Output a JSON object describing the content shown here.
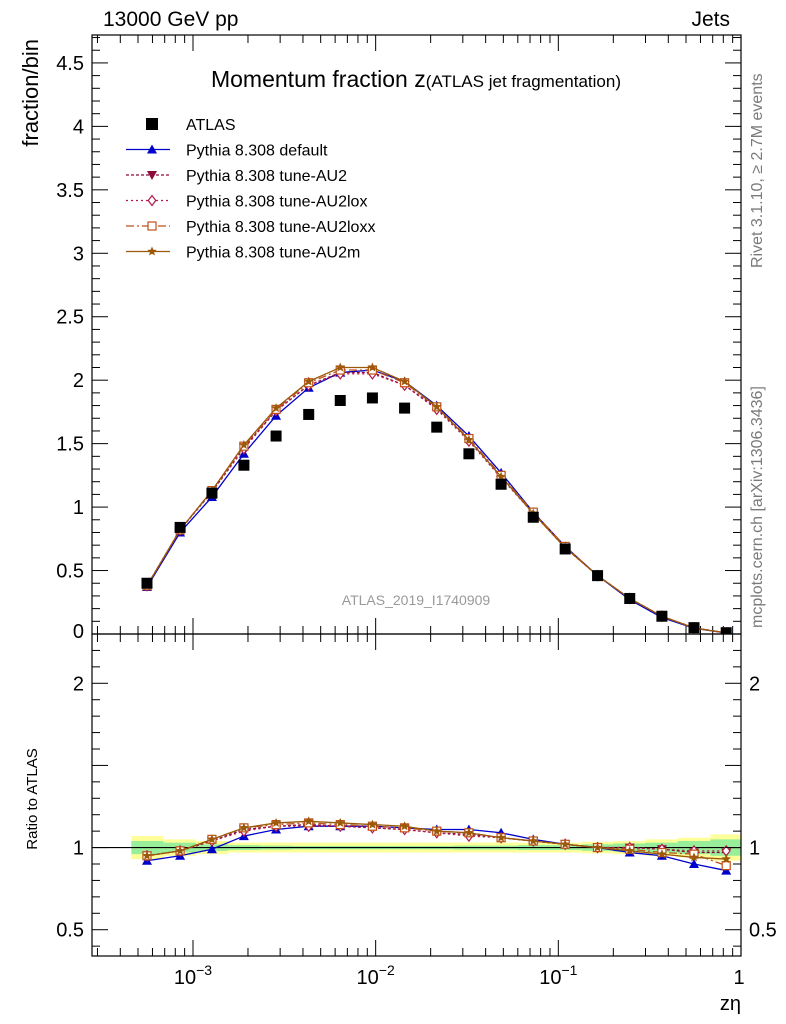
{
  "header": {
    "left": "13000 GeV pp",
    "right": "Jets"
  },
  "side_labels": {
    "rivet": "Rivet 3.1.10, ≥ 2.7M events",
    "mcplots": "mcplots.cern.ch [arXiv:1306.3436]"
  },
  "chart_data": [
    {
      "type": "line",
      "title": "Momentum fraction z",
      "subtitle": "(ATLAS jet fragmentation)",
      "ylabel": "fraction/bin",
      "xlabel": "",
      "xscale": "log",
      "xlim": [
        0.00028,
        1.0
      ],
      "ylim": [
        0,
        4.72
      ],
      "yticks": [
        0.5,
        1,
        1.5,
        2,
        2.5,
        3,
        3.5,
        4,
        4.5
      ],
      "ytick_labels": [
        "0.5",
        "1",
        "1.5",
        "2",
        "2.5",
        "3",
        "3.5",
        "4",
        "4.5"
      ],
      "bottom_tick_label": "0",
      "watermark": "ATLAS_2019_I1740909",
      "legend_position": "top-left",
      "x": [
        0.00056,
        0.00085,
        0.00127,
        0.0019,
        0.00285,
        0.0043,
        0.0064,
        0.0096,
        0.0144,
        0.0216,
        0.0324,
        0.0486,
        0.0729,
        0.109,
        0.164,
        0.246,
        0.369,
        0.553,
        0.83
      ],
      "series": [
        {
          "name": "ATLAS",
          "color": "#000000",
          "marker": "square",
          "dash": "none",
          "values": [
            0.4,
            0.84,
            1.11,
            1.33,
            1.56,
            1.73,
            1.84,
            1.86,
            1.78,
            1.63,
            1.42,
            1.18,
            0.92,
            0.67,
            0.46,
            0.28,
            0.14,
            0.05,
            0.01
          ]
        },
        {
          "name": "Pythia 8.308 default",
          "color": "#0000cc",
          "marker": "triangle-up",
          "dash": "solid",
          "values": [
            0.37,
            0.8,
            1.08,
            1.42,
            1.72,
            1.94,
            2.06,
            2.08,
            1.99,
            1.8,
            1.56,
            1.27,
            0.96,
            0.69,
            0.46,
            0.27,
            0.13,
            0.045,
            0.008
          ]
        },
        {
          "name": "Pythia 8.308 tune-AU2",
          "color": "#8b0a3a",
          "marker": "triangle-down",
          "dash": "3,2",
          "values": [
            0.38,
            0.82,
            1.12,
            1.47,
            1.76,
            1.96,
            2.06,
            2.06,
            1.96,
            1.78,
            1.53,
            1.24,
            0.95,
            0.68,
            0.46,
            0.28,
            0.14,
            0.048,
            0.009
          ]
        },
        {
          "name": "Pythia 8.308 tune-AU2lox",
          "color": "#b01a4a",
          "marker": "diamond-open",
          "dash": "2,3",
          "values": [
            0.38,
            0.82,
            1.12,
            1.46,
            1.76,
            1.96,
            2.05,
            2.05,
            1.96,
            1.77,
            1.52,
            1.23,
            0.95,
            0.68,
            0.46,
            0.28,
            0.14,
            0.049,
            0.009
          ]
        },
        {
          "name": "Pythia 8.308 tune-AU2loxx",
          "color": "#c0501a",
          "marker": "square-open",
          "dash": "8,3,2,3",
          "values": [
            0.38,
            0.82,
            1.13,
            1.48,
            1.77,
            1.98,
            2.08,
            2.08,
            1.98,
            1.79,
            1.54,
            1.25,
            0.96,
            0.69,
            0.46,
            0.28,
            0.14,
            0.048,
            0.009
          ]
        },
        {
          "name": "Pythia 8.308 tune-AU2m",
          "color": "#9a5a0a",
          "marker": "star",
          "dash": "solid",
          "values": [
            0.38,
            0.82,
            1.13,
            1.49,
            1.78,
            1.99,
            2.1,
            2.1,
            1.99,
            1.79,
            1.53,
            1.24,
            0.95,
            0.68,
            0.46,
            0.28,
            0.14,
            0.047,
            0.008
          ]
        }
      ]
    },
    {
      "type": "line",
      "title": "",
      "ylabel": "Ratio to ATLAS",
      "xlabel": "zη",
      "xscale": "log",
      "xlim": [
        0.00028,
        1.0
      ],
      "ylim": [
        0.34,
        2.3
      ],
      "yticks": [
        0.5,
        1,
        2
      ],
      "ytick_labels": [
        "0.5",
        "1",
        "2"
      ],
      "xtick_labels": [
        {
          "value": 0.001,
          "base": "10",
          "exp": "−3"
        },
        {
          "value": 0.01,
          "base": "10",
          "exp": "−2"
        },
        {
          "value": 0.1,
          "base": "10",
          "exp": "−1"
        },
        {
          "value": 1,
          "base": "1",
          "exp": ""
        }
      ],
      "reference_line": 1,
      "uncertainty_bands": {
        "stat_color": "#99ee99",
        "total_color": "#ffff99",
        "bins": [
          {
            "x_low": 0.00046,
            "x_high": 0.00069,
            "total": 0.07,
            "stat": 0.04
          },
          {
            "x_low": 0.00069,
            "x_high": 0.00104,
            "total": 0.05,
            "stat": 0.03
          },
          {
            "x_low": 0.00104,
            "x_high": 0.00156,
            "total": 0.04,
            "stat": 0.02
          },
          {
            "x_low": 0.00156,
            "x_high": 0.00234,
            "total": 0.03,
            "stat": 0.015
          },
          {
            "x_low": 0.00234,
            "x_high": 0.0035,
            "total": 0.03,
            "stat": 0.012
          },
          {
            "x_low": 0.0035,
            "x_high": 0.0053,
            "total": 0.03,
            "stat": 0.01
          },
          {
            "x_low": 0.0053,
            "x_high": 0.0079,
            "total": 0.03,
            "stat": 0.01
          },
          {
            "x_low": 0.0079,
            "x_high": 0.0118,
            "total": 0.03,
            "stat": 0.01
          },
          {
            "x_low": 0.0118,
            "x_high": 0.0178,
            "total": 0.03,
            "stat": 0.01
          },
          {
            "x_low": 0.0178,
            "x_high": 0.0267,
            "total": 0.03,
            "stat": 0.01
          },
          {
            "x_low": 0.0267,
            "x_high": 0.04,
            "total": 0.03,
            "stat": 0.012
          },
          {
            "x_low": 0.04,
            "x_high": 0.06,
            "total": 0.03,
            "stat": 0.012
          },
          {
            "x_low": 0.06,
            "x_high": 0.09,
            "total": 0.03,
            "stat": 0.015
          },
          {
            "x_low": 0.09,
            "x_high": 0.135,
            "total": 0.03,
            "stat": 0.015
          },
          {
            "x_low": 0.135,
            "x_high": 0.2,
            "total": 0.035,
            "stat": 0.02
          },
          {
            "x_low": 0.2,
            "x_high": 0.3,
            "total": 0.04,
            "stat": 0.025
          },
          {
            "x_low": 0.3,
            "x_high": 0.45,
            "total": 0.05,
            "stat": 0.03
          },
          {
            "x_low": 0.45,
            "x_high": 0.68,
            "total": 0.06,
            "stat": 0.04
          },
          {
            "x_low": 0.68,
            "x_high": 1.0,
            "total": 0.08,
            "stat": 0.05
          }
        ]
      },
      "x": [
        0.00056,
        0.00085,
        0.00127,
        0.0019,
        0.00285,
        0.0043,
        0.0064,
        0.0096,
        0.0144,
        0.0216,
        0.0324,
        0.0486,
        0.0729,
        0.109,
        0.164,
        0.246,
        0.369,
        0.553,
        0.83
      ],
      "series": [
        {
          "name": "Pythia 8.308 default",
          "color": "#0000cc",
          "marker": "triangle-up",
          "dash": "solid",
          "values": [
            0.92,
            0.95,
            0.99,
            1.07,
            1.11,
            1.13,
            1.13,
            1.13,
            1.12,
            1.11,
            1.11,
            1.09,
            1.05,
            1.02,
            1.0,
            0.97,
            0.95,
            0.9,
            0.86
          ]
        },
        {
          "name": "Pythia 8.308 tune-AU2",
          "color": "#8b0a3a",
          "marker": "triangle-down",
          "dash": "3,2",
          "values": [
            0.95,
            0.98,
            1.04,
            1.11,
            1.13,
            1.14,
            1.13,
            1.12,
            1.11,
            1.09,
            1.08,
            1.06,
            1.04,
            1.02,
            1.0,
            1.0,
            0.99,
            0.97,
            0.97
          ]
        },
        {
          "name": "Pythia 8.308 tune-AU2lox",
          "color": "#b01a4a",
          "marker": "diamond-open",
          "dash": "2,3",
          "values": [
            0.95,
            0.98,
            1.04,
            1.1,
            1.13,
            1.13,
            1.13,
            1.12,
            1.11,
            1.09,
            1.07,
            1.06,
            1.04,
            1.02,
            1.0,
            1.0,
            0.99,
            0.98,
            0.98
          ]
        },
        {
          "name": "Pythia 8.308 tune-AU2loxx",
          "color": "#c0501a",
          "marker": "square-open",
          "dash": "8,3,2,3",
          "values": [
            0.95,
            0.98,
            1.05,
            1.12,
            1.14,
            1.15,
            1.14,
            1.13,
            1.12,
            1.1,
            1.09,
            1.06,
            1.04,
            1.02,
            1.0,
            0.99,
            0.97,
            0.96,
            0.89
          ]
        },
        {
          "name": "Pythia 8.308 tune-AU2m",
          "color": "#9a5a0a",
          "marker": "star",
          "dash": "solid",
          "values": [
            0.95,
            0.98,
            1.05,
            1.12,
            1.15,
            1.16,
            1.15,
            1.14,
            1.13,
            1.1,
            1.09,
            1.06,
            1.04,
            1.02,
            1.0,
            0.98,
            0.96,
            0.94,
            0.93
          ]
        }
      ]
    }
  ]
}
